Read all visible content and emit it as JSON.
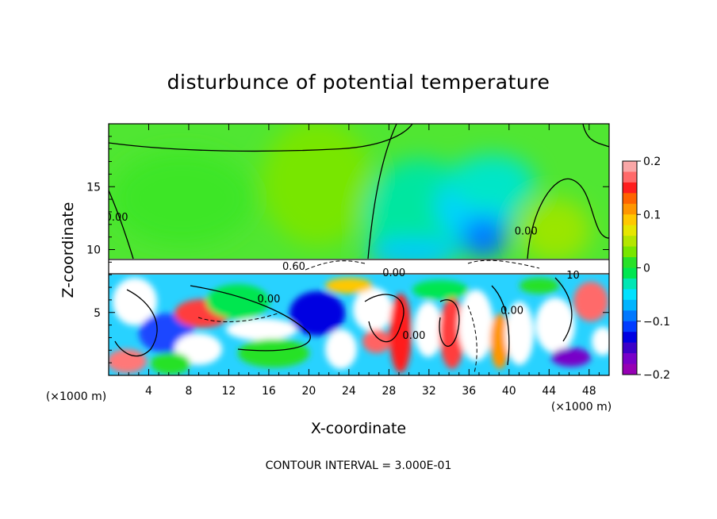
{
  "chart_data": {
    "type": "heatmap",
    "title": "disturbunce of potential temperature",
    "xlabel": "X-coordinate",
    "ylabel": "Z-coordinate",
    "x_unit_label": "(×1000 m)",
    "z_unit_label": "(×1000 m)",
    "footer": "CONTOUR INTERVAL = 3.000E-01",
    "xlim": [
      0,
      50
    ],
    "ylim": [
      0,
      20
    ],
    "x_ticks": [
      "4",
      "8",
      "12",
      "16",
      "20",
      "24",
      "28",
      "32",
      "36",
      "40",
      "44",
      "48"
    ],
    "x_tick_values": [
      4,
      8,
      12,
      16,
      20,
      24,
      28,
      32,
      36,
      40,
      44,
      48
    ],
    "y_ticks": [
      "5",
      "10",
      "15"
    ],
    "y_tick_values": [
      5,
      10,
      15
    ],
    "colorbar": {
      "min": -0.2,
      "max": 0.2,
      "tick_labels": [
        "0.2",
        "0.1",
        "0",
        "−0.1",
        "−0.2"
      ],
      "tick_values": [
        0.2,
        0.1,
        0,
        -0.1,
        -0.2
      ],
      "colors": [
        "#f9a7a7",
        "#ff6a6a",
        "#ff1e1e",
        "#ff6400",
        "#ff9600",
        "#ffc800",
        "#e6e600",
        "#b4e600",
        "#78e600",
        "#28e128",
        "#00e650",
        "#00e6b4",
        "#00e1ff",
        "#00b4ff",
        "#0078ff",
        "#003cff",
        "#0000e1",
        "#3c00c8",
        "#7800c8",
        "#9600b4"
      ]
    },
    "contour_labels": [
      {
        "text": "0.00",
        "x": 0.8,
        "z": 12.3
      },
      {
        "text": "0.60",
        "x": 18.5,
        "z": 8.4
      },
      {
        "text": "0.00",
        "x": 28.5,
        "z": 7.9
      },
      {
        "text": "0.00",
        "x": 16.0,
        "z": 5.8
      },
      {
        "text": "0.00",
        "x": 41.7,
        "z": 11.2
      },
      {
        "text": "0.00",
        "x": 40.3,
        "z": 4.9
      },
      {
        "text": "0.00",
        "x": 30.5,
        "z": 2.9
      },
      {
        "text": "10",
        "x": 46.4,
        "z": 7.7
      }
    ],
    "grid": false
  }
}
